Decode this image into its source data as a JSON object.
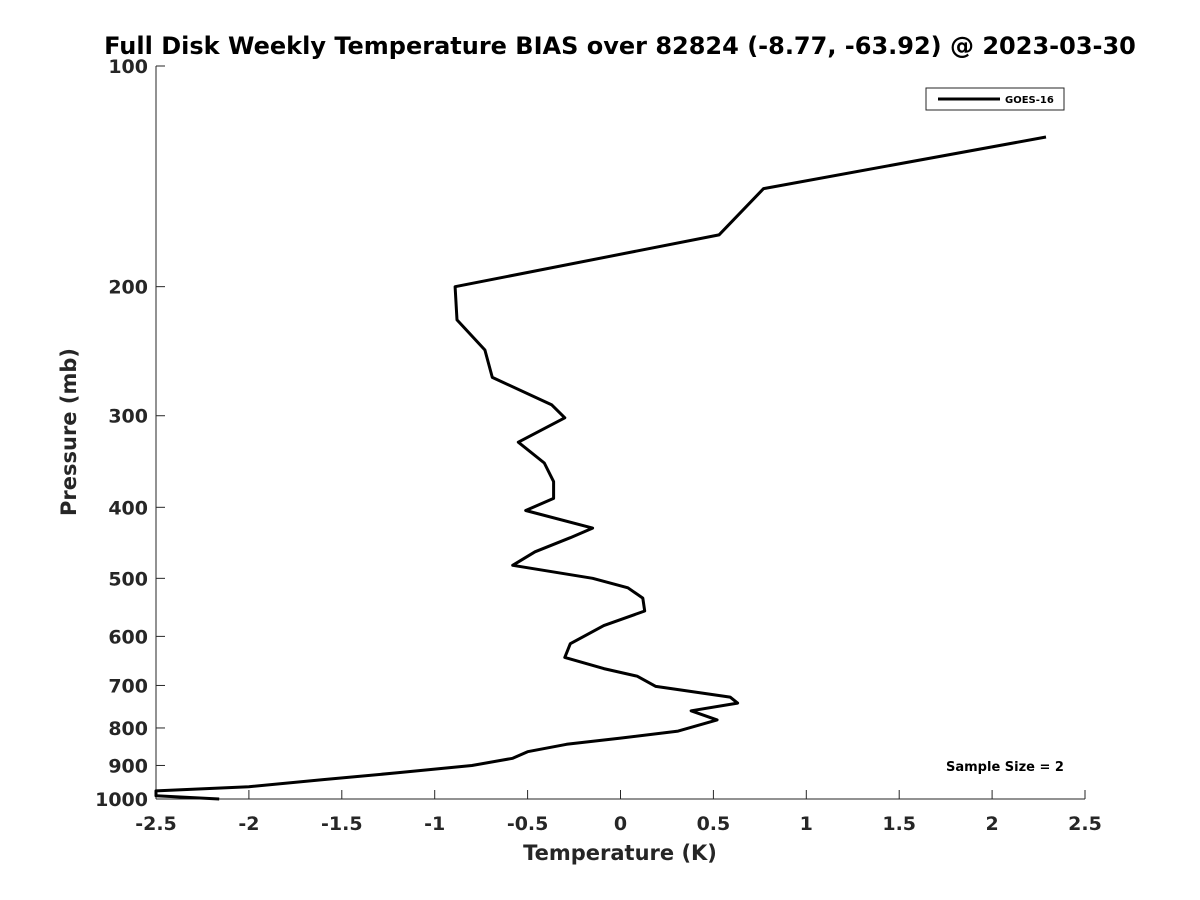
{
  "chart_data": {
    "type": "line",
    "title": "Full Disk Weekly Temperature BIAS over 82824 (-8.77, -63.92) @ 2023-03-30",
    "xlabel": "Temperature (K)",
    "ylabel": "Pressure (mb)",
    "xlim": [
      -2.5,
      2.5
    ],
    "ylim": [
      100,
      1000
    ],
    "y_scale": "log",
    "y_reversed": true,
    "x_ticks": [
      -2.5,
      -2,
      -1.5,
      -1,
      -0.5,
      0,
      0.5,
      1,
      1.5,
      2,
      2.5
    ],
    "x_tick_labels": [
      "-2.5",
      "-2",
      "-1.5",
      "-1",
      "-0.5",
      "0",
      "0.5",
      "1",
      "1.5",
      "2",
      "2.5"
    ],
    "y_ticks": [
      100,
      200,
      300,
      400,
      500,
      600,
      700,
      800,
      900,
      1000
    ],
    "y_tick_labels": [
      "100",
      "200",
      "300",
      "400",
      "500",
      "600",
      "700",
      "800",
      "900",
      "1000"
    ],
    "grid": false,
    "legend": {
      "position": "top-right",
      "entries": [
        "GOES-16"
      ]
    },
    "annotation": "Sample Size = 2",
    "series": [
      {
        "name": "GOES-16",
        "color": "#000000",
        "x": [
          2.29,
          0.77,
          0.53,
          -0.89,
          -0.88,
          -0.73,
          -0.69,
          -0.37,
          -0.3,
          -0.55,
          -0.41,
          -0.36,
          -0.36,
          -0.51,
          -0.15,
          -0.27,
          -0.46,
          -0.58,
          -0.15,
          0.04,
          0.12,
          0.13,
          -0.09,
          -0.27,
          -0.3,
          -0.09,
          0.09,
          0.19,
          0.59,
          0.63,
          0.38,
          0.52,
          0.31,
          0.0,
          -0.29,
          -0.5,
          -0.58,
          -0.8,
          -1.2,
          -1.6,
          -2.0,
          -2.5,
          -2.5,
          -2.16
        ],
        "y": [
          125,
          147,
          170,
          200,
          222,
          244,
          266,
          290,
          302,
          326,
          348,
          369,
          389,
          404,
          427,
          440,
          460,
          480,
          500,
          515,
          532,
          554,
          580,
          614,
          641,
          664,
          680,
          702,
          726,
          740,
          758,
          780,
          808,
          826,
          842,
          862,
          880,
          900,
          921,
          941,
          962,
          975,
          990,
          1000
        ]
      }
    ]
  }
}
